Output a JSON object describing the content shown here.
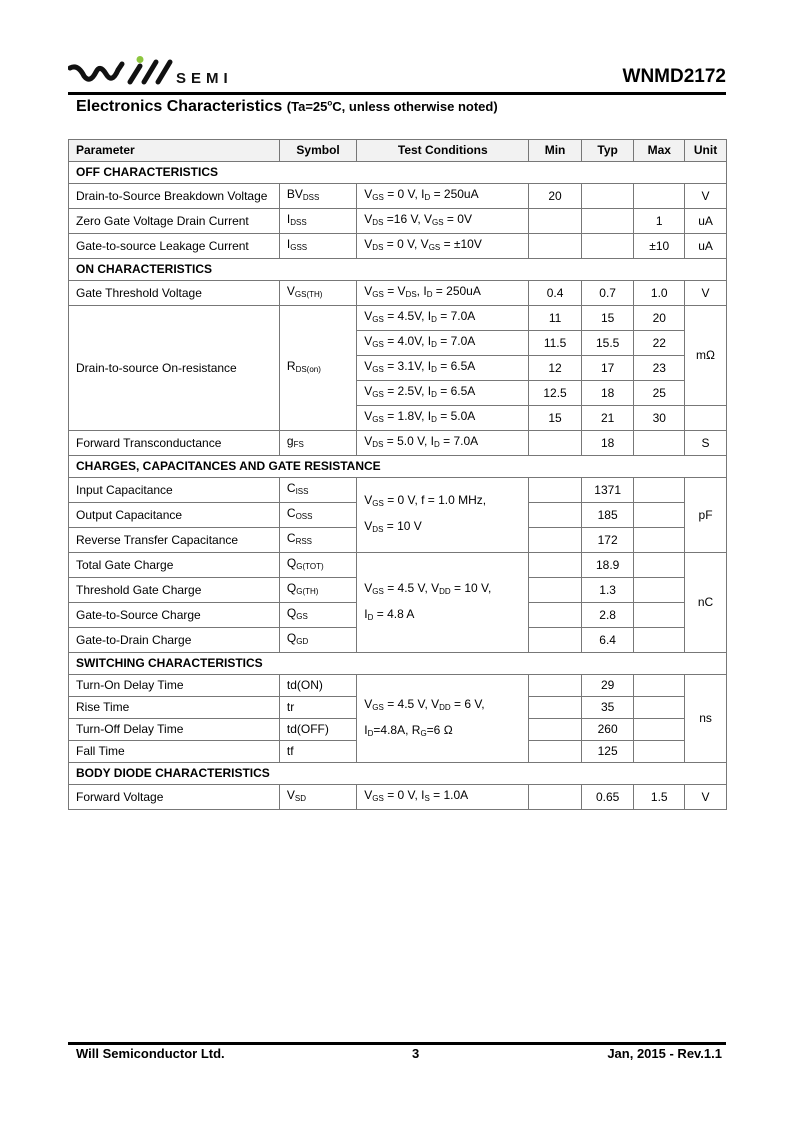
{
  "header": {
    "logo_text": "will SEMI",
    "logo_sub": "SEMI",
    "part_number": "WNMD2172",
    "accent_color": "#8dc63f"
  },
  "section_title": {
    "main": "Electronics Characteristics",
    "note_pre": "(Ta=25",
    "note_sup": "o",
    "note_post": "C, unless otherwise noted)"
  },
  "table": {
    "columns": [
      "Parameter",
      "Symbol",
      "Test Conditions",
      "Min",
      "Typ",
      "Max",
      "Unit"
    ],
    "sections": [
      {
        "title": "OFF CHARACTERISTICS",
        "rows": [
          {
            "param": "Drain-to-Source Breakdown Voltage",
            "symbol": [
              "BV",
              "DSS"
            ],
            "cond": [
              "V",
              "GS",
              " = 0 V, I",
              "D",
              " = 250uA"
            ],
            "min": "20",
            "typ": "",
            "max": "",
            "unit": "V"
          },
          {
            "param": "Zero Gate Voltage Drain Current",
            "symbol": [
              "I",
              "DSS"
            ],
            "cond": [
              "V",
              "DS",
              " =16 V, V",
              "GS",
              " = 0V"
            ],
            "min": "",
            "typ": "",
            "max": "1",
            "unit": "uA"
          },
          {
            "param": "Gate-to-source Leakage Current",
            "symbol": [
              "I",
              "GSS"
            ],
            "cond": [
              "V",
              "DS",
              " = 0 V, V",
              "GS",
              " = ±10V"
            ],
            "min": "",
            "typ": "",
            "max": "±10",
            "unit": "uA"
          }
        ]
      },
      {
        "title": "ON CHARACTERISTICS",
        "rows": [
          {
            "param": "Gate Threshold Voltage",
            "symbol": [
              "V",
              "GS(TH)"
            ],
            "cond": [
              "V",
              "GS",
              " = V",
              "DS",
              ", I",
              "D",
              " = 250uA"
            ],
            "min": "0.4",
            "typ": "0.7",
            "max": "1.0",
            "unit": "V"
          },
          {
            "param": "Drain-to-source On-resistance",
            "symbol": [
              "R",
              "DS(on)"
            ],
            "cond": [
              "V",
              "GS",
              " = 4.5V, I",
              "D",
              " = 7.0A"
            ],
            "min": "11",
            "typ": "15",
            "max": "20",
            "unit": "mΩ"
          },
          {
            "param": null,
            "symbol": null,
            "cond": [
              "V",
              "GS",
              " = 4.0V, I",
              "D",
              " = 7.0A"
            ],
            "min": "11.5",
            "typ": "15.5",
            "max": "22",
            "unit": null
          },
          {
            "param": null,
            "symbol": null,
            "cond": [
              "V",
              "GS",
              " = 3.1V, I",
              "D",
              " = 6.5A"
            ],
            "min": "12",
            "typ": "17",
            "max": "23",
            "unit": null
          },
          {
            "param": null,
            "symbol": null,
            "cond": [
              "V",
              "GS",
              " = 2.5V, I",
              "D",
              " = 6.5A"
            ],
            "min": "12.5",
            "typ": "18",
            "max": "25",
            "unit": null
          },
          {
            "param": null,
            "symbol": null,
            "cond": [
              "V",
              "GS",
              " = 1.8V, I",
              "D",
              " = 5.0A"
            ],
            "min": "15",
            "typ": "21",
            "max": "30",
            "unit": ""
          },
          {
            "param": "Forward Transconductance",
            "symbol": [
              "g",
              "FS"
            ],
            "cond": [
              "V",
              "DS",
              " = 5.0 V, I",
              "D",
              " = 7.0A"
            ],
            "min": "",
            "typ": "18",
            "max": "",
            "unit": "S"
          }
        ]
      },
      {
        "title": "CHARGES, CAPACITANCES AND GATE RESISTANCE",
        "rows": [
          {
            "param": "Input Capacitance",
            "symbol": [
              "C",
              "ISS"
            ],
            "cond": [
              "V",
              "GS",
              " = 0 V, f = 1.0 MHz, V",
              "DS",
              " = 10 V"
            ],
            "min": "",
            "typ": "1371",
            "max": "",
            "unit": "pF"
          },
          {
            "param": "Output Capacitance",
            "symbol": [
              "C",
              "OSS"
            ],
            "cond": null,
            "min": "",
            "typ": "185",
            "max": "",
            "unit": null
          },
          {
            "param": "Reverse Transfer Capacitance",
            "symbol": [
              "C",
              "RSS"
            ],
            "cond": null,
            "min": "",
            "typ": "172",
            "max": "",
            "unit": null
          },
          {
            "param": "Total Gate Charge",
            "symbol": [
              "Q",
              "G(TOT)"
            ],
            "cond": [
              "V",
              "GS",
              " = 4.5 V, V",
              "DD",
              " = 10 V, I",
              "D",
              " = 4.8 A"
            ],
            "min": "",
            "typ": "18.9",
            "max": "",
            "unit": "nC"
          },
          {
            "param": "Threshold Gate Charge",
            "symbol": [
              "Q",
              "G(TH)"
            ],
            "cond": null,
            "min": "",
            "typ": "1.3",
            "max": "",
            "unit": null
          },
          {
            "param": "Gate-to-Source Charge",
            "symbol": [
              "Q",
              "GS"
            ],
            "cond": null,
            "min": "",
            "typ": "2.8",
            "max": "",
            "unit": null
          },
          {
            "param": "Gate-to-Drain Charge",
            "symbol": [
              "Q",
              "GD"
            ],
            "cond": null,
            "min": "",
            "typ": "6.4",
            "max": "",
            "unit": null
          }
        ]
      },
      {
        "title": "SWITCHING CHARACTERISTICS",
        "rows": [
          {
            "param": "Turn-On Delay Time",
            "symbol": [
              "td(ON)"
            ],
            "cond": [
              "V",
              "GS",
              " = 4.5 V, V",
              "DD",
              " = 6 V, I",
              "D",
              "=4.8A, R",
              "G",
              "=6 Ω"
            ],
            "min": "",
            "typ": "29",
            "max": "",
            "unit": "ns"
          },
          {
            "param": "Rise Time",
            "symbol": [
              "tr"
            ],
            "cond": null,
            "min": "",
            "typ": "35",
            "max": "",
            "unit": null
          },
          {
            "param": "Turn-Off Delay Time",
            "symbol": [
              "td(OFF)"
            ],
            "cond": null,
            "min": "",
            "typ": "260",
            "max": "",
            "unit": null
          },
          {
            "param": "Fall Time",
            "symbol": [
              "tf"
            ],
            "cond": null,
            "min": "",
            "typ": "125",
            "max": "",
            "unit": null
          }
        ]
      },
      {
        "title": "BODY DIODE CHARACTERISTICS",
        "rows": [
          {
            "param": "Forward Voltage",
            "symbol": [
              "V",
              "SD"
            ],
            "cond": [
              "V",
              "GS",
              " = 0 V, I",
              "S",
              " = 1.0A"
            ],
            "min": "",
            "typ": "0.65",
            "max": "1.5",
            "unit": "V"
          }
        ]
      }
    ]
  },
  "footer": {
    "company": "Will Semiconductor Ltd.",
    "page": "3",
    "date_rev": "Jan, 2015 - Rev.1.1"
  }
}
